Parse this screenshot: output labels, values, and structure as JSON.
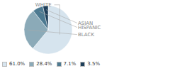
{
  "chart_data": {
    "type": "pie",
    "categories": [
      "WHITE",
      "BLACK",
      "HISPANIC",
      "ASIAN"
    ],
    "values": [
      61.0,
      28.4,
      7.1,
      3.5
    ],
    "value_labels": [
      "61.0%",
      "28.4%",
      "7.1%",
      "3.5%"
    ],
    "colors": [
      "#d6e4ee",
      "#8baab8",
      "#4d7a91",
      "#1e3f5a"
    ],
    "legend": "lower left"
  }
}
